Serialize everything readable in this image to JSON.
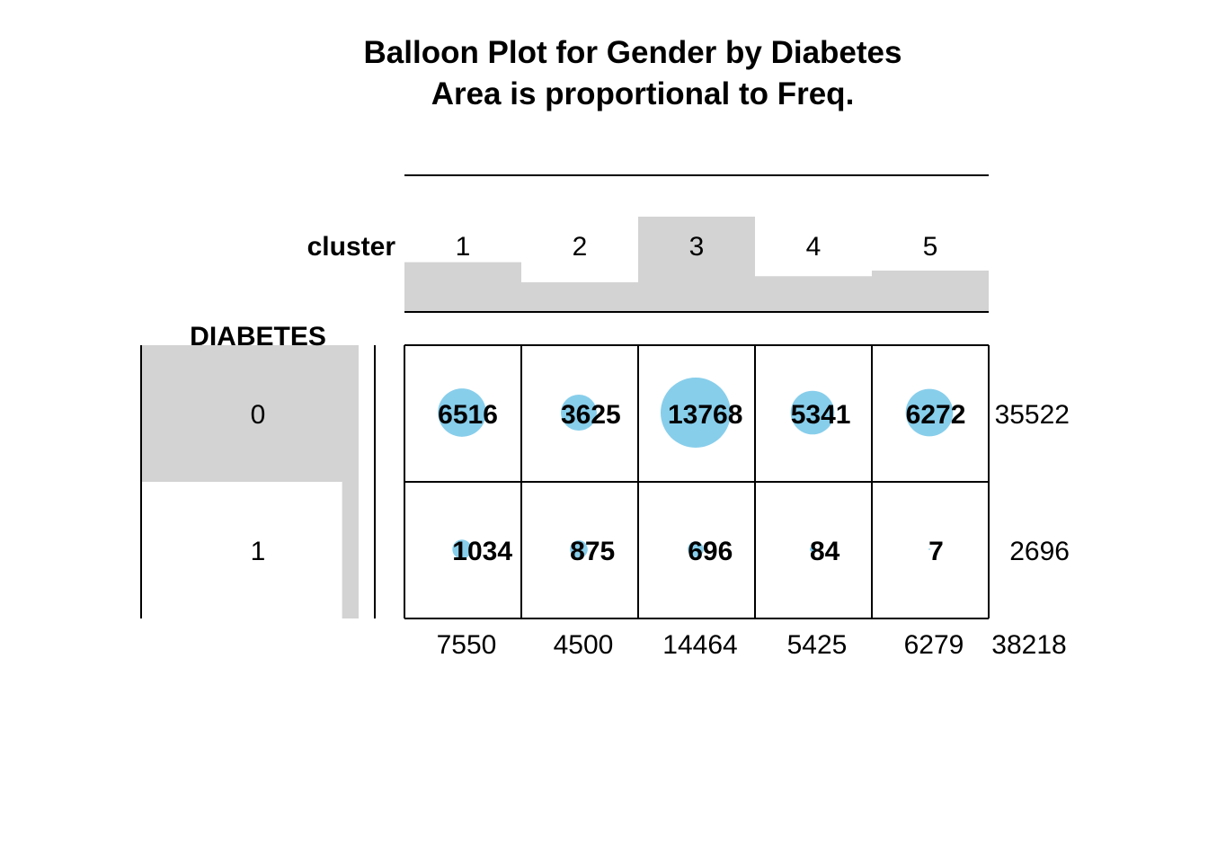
{
  "chart_data": {
    "type": "balloon",
    "title": "Balloon Plot for Gender by Diabetes",
    "subtitle": "Area is proportional to Freq.",
    "col_variable": "cluster",
    "row_variable": "DIABETES",
    "columns": [
      "1",
      "2",
      "3",
      "4",
      "5"
    ],
    "rows": [
      "0",
      "1"
    ],
    "values": [
      [
        6516,
        3625,
        13768,
        5341,
        6272
      ],
      [
        1034,
        875,
        696,
        84,
        7
      ]
    ],
    "row_totals": [
      35522,
      2696
    ],
    "col_totals": [
      7550,
      4500,
      14464,
      5425,
      6279
    ],
    "grand_total": 38218,
    "balloon_color": "#87CEEB",
    "marginal_bar_color": "#D3D3D3"
  }
}
